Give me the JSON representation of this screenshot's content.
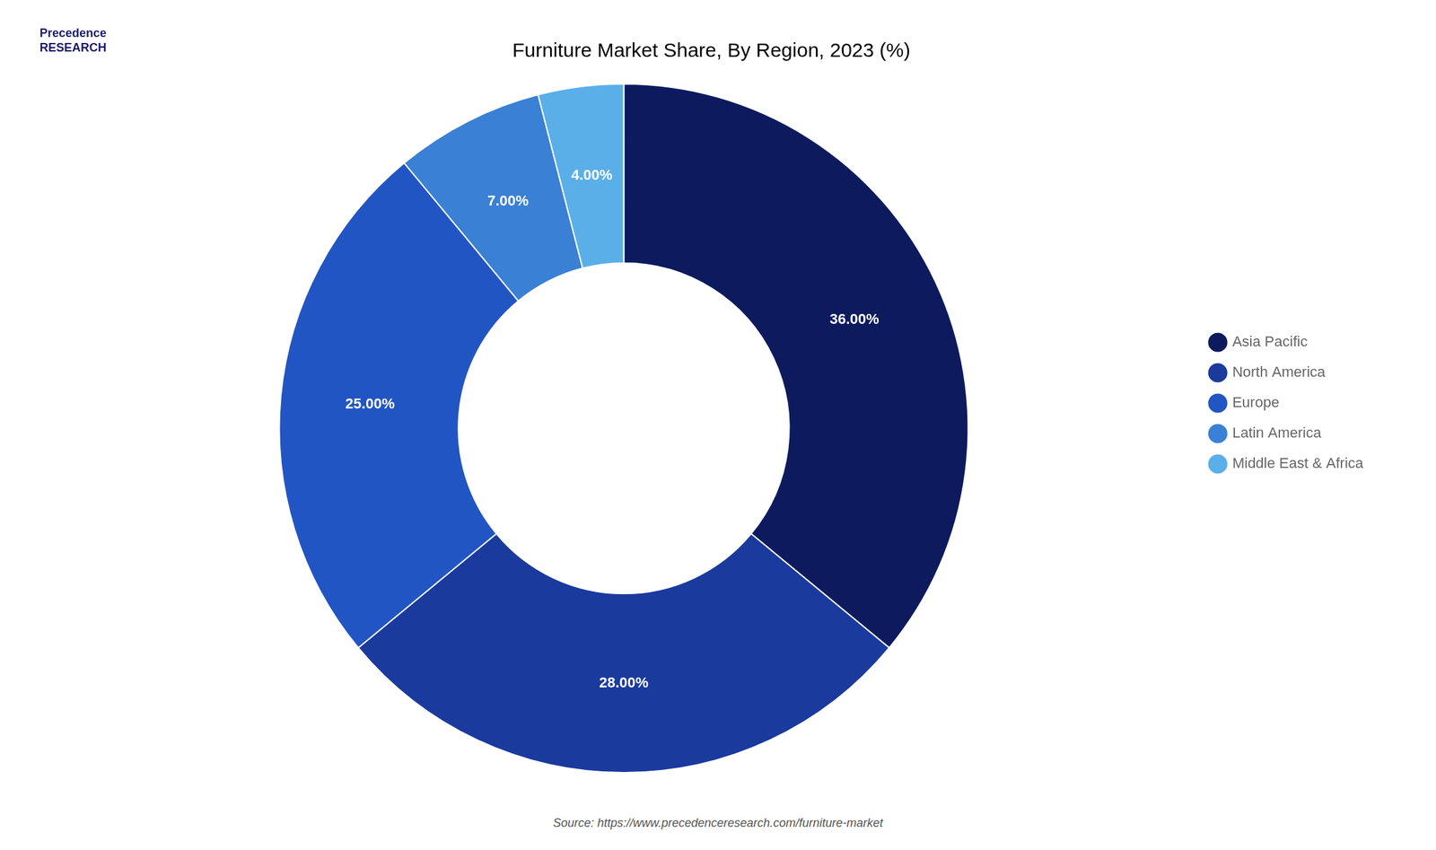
{
  "chart_data": {
    "type": "doughnut",
    "title": "Furniture Market Share, By Region, 2023 (%)",
    "categories": [
      "Asia Pacific",
      "North America",
      "Europe",
      "Latin America",
      "Middle East & Africa"
    ],
    "values": [
      36.0,
      28.0,
      25.0,
      7.0,
      4.0
    ],
    "value_labels": [
      "36.00%",
      "28.00%",
      "25.00%",
      "7.00%",
      "4.00%"
    ],
    "colors": [
      "#0d1b5e",
      "#1a3a9e",
      "#2255c4",
      "#3a80d4",
      "#5aafe8"
    ],
    "data_labels": true,
    "legend": "right",
    "annotations": [
      "Precedence\nRESEARCH",
      "Source: https://www.precedenceresearch.com/furniture-market"
    ]
  }
}
